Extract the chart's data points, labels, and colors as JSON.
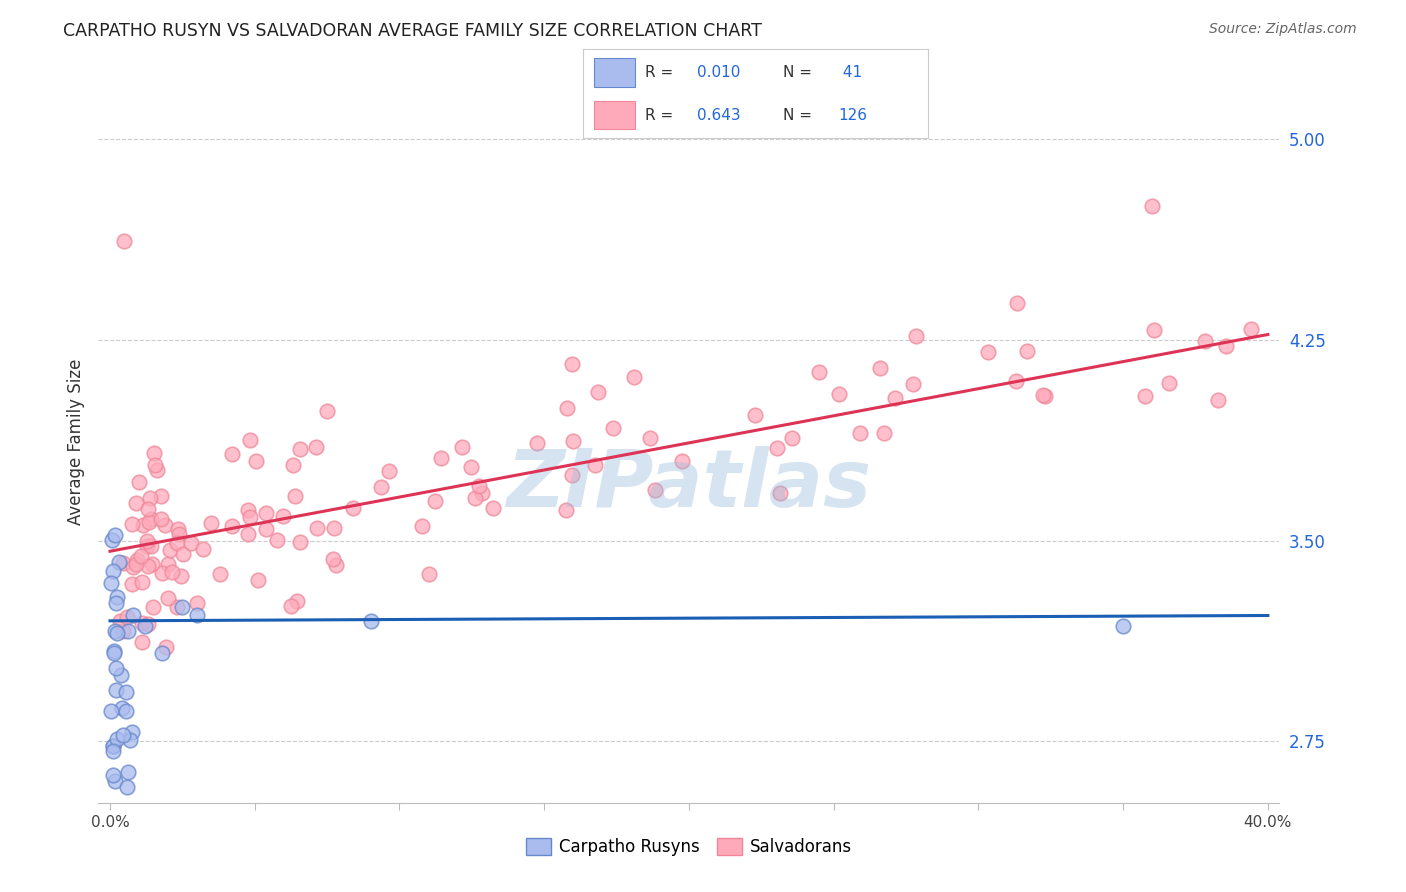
{
  "title": "CARPATHO RUSYN VS SALVADORAN AVERAGE FAMILY SIZE CORRELATION CHART",
  "source": "Source: ZipAtlas.com",
  "ylabel": "Average Family Size",
  "yticks": [
    2.75,
    3.5,
    4.25,
    5.0
  ],
  "ytick_labels": [
    "2.75",
    "3.50",
    "4.25",
    "5.00"
  ],
  "ytick_color": "#2266dd",
  "color_blue_face": "#aabbee",
  "color_blue_edge": "#6688cc",
  "color_pink_face": "#ffaabb",
  "color_pink_edge": "#ee8899",
  "line_blue": "#1a5fb4",
  "line_pink": "#dd3355",
  "watermark": "ZIPatlas",
  "watermark_color": "#99bbdd",
  "blue_line_y0": 3.2,
  "blue_line_y1": 3.22,
  "pink_line_y0": 3.46,
  "pink_line_y1": 4.27,
  "xlim_min": -0.004,
  "xlim_max": 0.404,
  "ylim_min": 2.52,
  "ylim_max": 5.22,
  "legend_r1": "R = 0.010",
  "legend_n1": " 41",
  "legend_r2": "R = 0.643",
  "legend_n2": "126",
  "title_fontsize": 12.5,
  "source_fontsize": 10
}
